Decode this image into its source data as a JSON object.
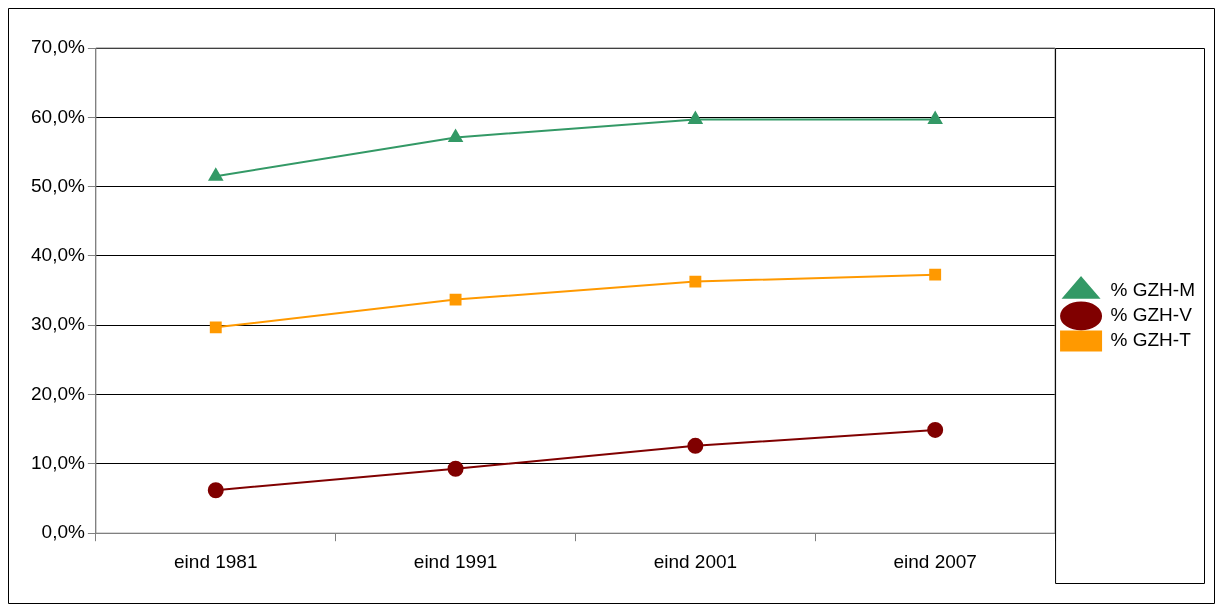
{
  "chart_data": {
    "type": "line",
    "categories": [
      "eind 1981",
      "eind 1991",
      "eind 2001",
      "eind 2007"
    ],
    "series": [
      {
        "name": "% GZH-M",
        "color": "#339966",
        "marker": "triangle",
        "values": [
          51.5,
          57.1,
          59.7,
          59.7
        ]
      },
      {
        "name": "% GZH-V",
        "color": "#800000",
        "marker": "circle",
        "values": [
          6.2,
          9.3,
          12.6,
          14.9
        ]
      },
      {
        "name": "% GZH-T",
        "color": "#ff9900",
        "marker": "square",
        "values": [
          29.7,
          33.7,
          36.3,
          37.3
        ]
      }
    ],
    "ylim": [
      0,
      70
    ],
    "yticks": [
      {
        "value": 0,
        "label": "0,0%"
      },
      {
        "value": 10,
        "label": "10,0%"
      },
      {
        "value": 20,
        "label": "20,0%"
      },
      {
        "value": 30,
        "label": "30,0%"
      },
      {
        "value": 40,
        "label": "40,0%"
      },
      {
        "value": 50,
        "label": "50,0%"
      },
      {
        "value": 60,
        "label": "60,0%"
      },
      {
        "value": 70,
        "label": "70,0%"
      }
    ],
    "grid": "y",
    "legend": "right",
    "line_style": "solid"
  }
}
